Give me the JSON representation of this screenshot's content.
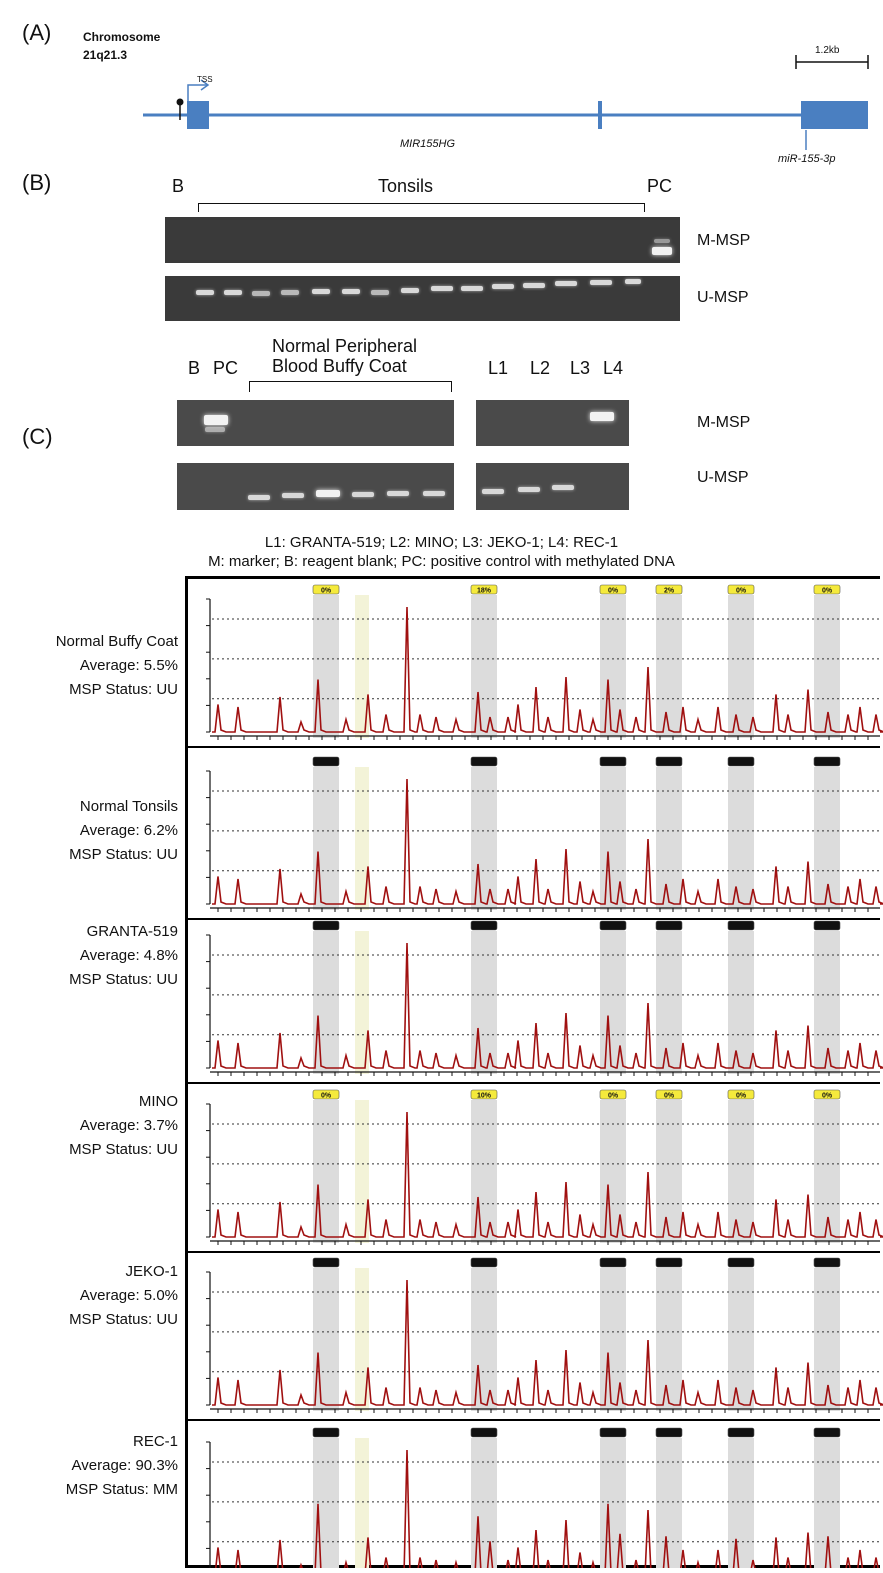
{
  "panelA": {
    "letter": "(A)",
    "chrom_line1": "Chromosome",
    "chrom_line2": "21q21.3",
    "tss": "TSS",
    "scale": "1.2kb",
    "gene": "MIR155HG",
    "mirna": "miR-155-3p"
  },
  "panelB": {
    "letter": "(B)",
    "blank": "B",
    "tonsils": "Tonsils",
    "pc": "PC",
    "m_msp": "M-MSP",
    "u_msp": "U-MSP"
  },
  "panelC": {
    "letter": "(C)",
    "blank": "B",
    "pc": "PC",
    "npb_line1": "Normal Peripheral",
    "npb_line2": "Blood Buffy Coat",
    "lanes": [
      "L1",
      "L2",
      "L3",
      "L4"
    ],
    "m_msp": "M-MSP",
    "u_msp": "U-MSP",
    "legend_line1": "L1: GRANTA-519;  L2: MINO; L3: JEKO-1; L4: REC-1",
    "legend_line2": "M: marker; B: reagent blank; PC: positive control with methylated DNA"
  },
  "traces": [
    {
      "name": "Normal Buffy Coat",
      "average": "Average: 5.5%",
      "status": "MSP Status: UU",
      "badges": [
        "0%",
        "18%",
        "0%",
        "2%",
        "0%",
        "0%"
      ]
    },
    {
      "name": "Normal Tonsils",
      "average": "Average: 6.2%",
      "status": "MSP Status: UU",
      "badges": []
    },
    {
      "name": "GRANTA-519",
      "average": "Average: 4.8%",
      "status": "MSP Status: UU",
      "badges": []
    },
    {
      "name": "MINO",
      "average": "Average: 3.7%",
      "status": "MSP Status: UU",
      "badges": [
        "0%",
        "10%",
        "0%",
        "0%",
        "0%",
        "0%"
      ]
    },
    {
      "name": "JEKO-1",
      "average": "Average: 5.0%",
      "status": "MSP Status: UU",
      "badges": []
    },
    {
      "name": "REC-1",
      "average": "Average: 90.3%",
      "status": "MSP Status: MM",
      "badges": []
    }
  ],
  "colors": {
    "gene": "#4a7fc1",
    "trace": "#a01010",
    "gel": "#3a3a3a",
    "cpg_shade": "#dcdcdc",
    "ref_shade": "#f3f3d8",
    "badge": "#f5ea3c"
  }
}
